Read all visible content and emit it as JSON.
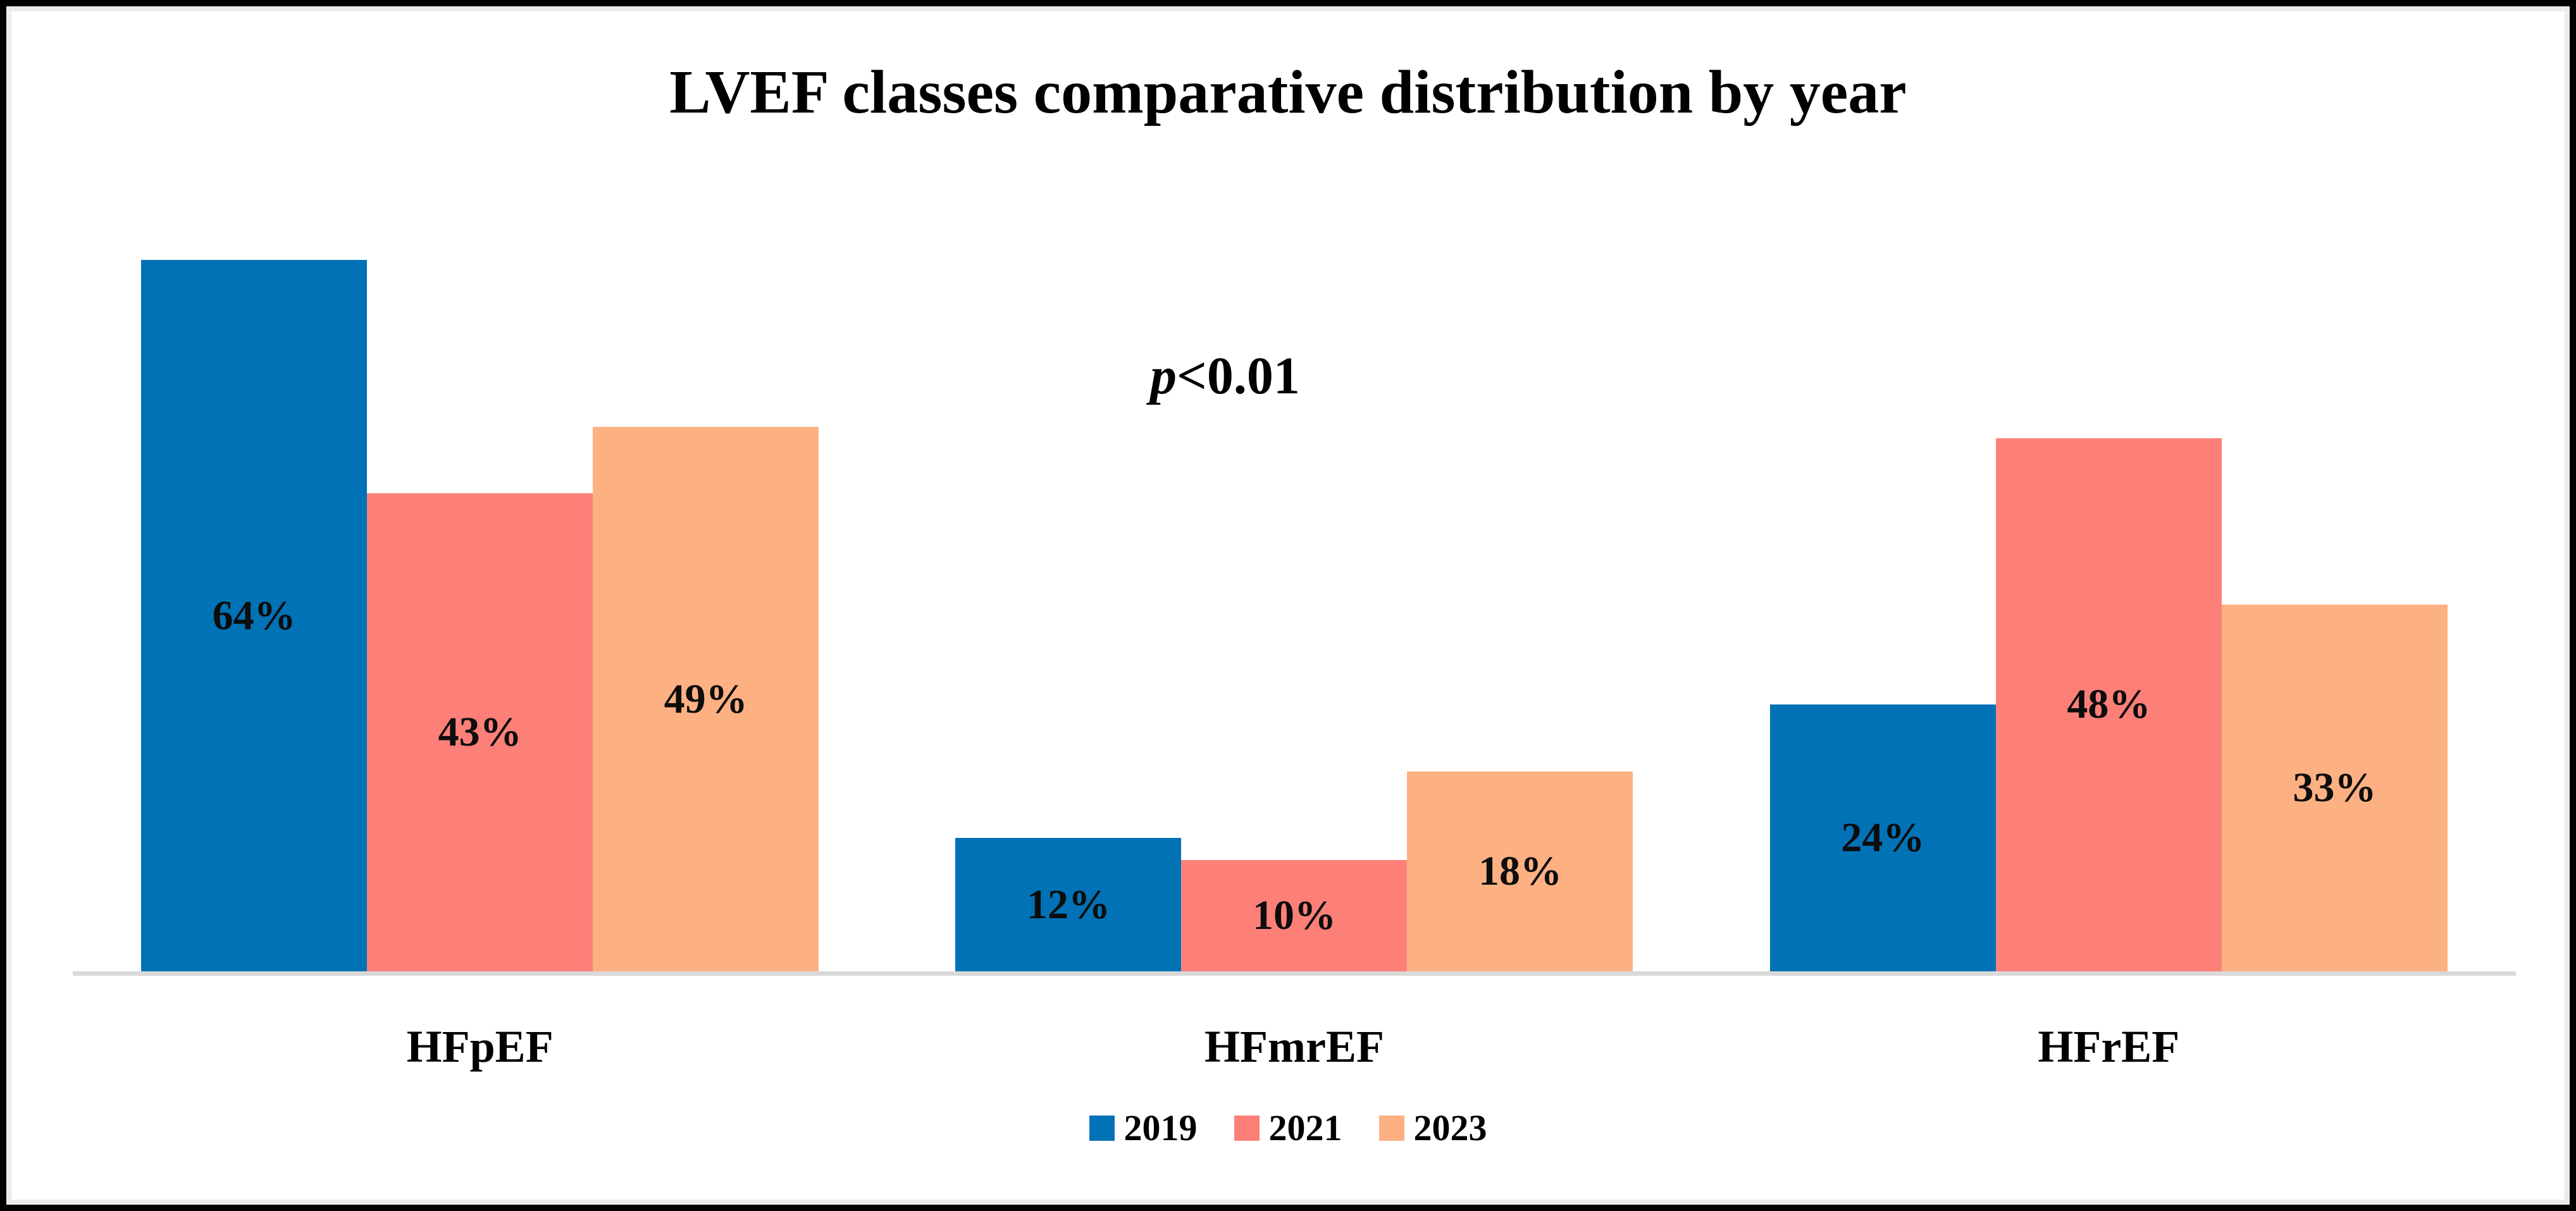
{
  "frame": {
    "background": "#FFFFFF",
    "border_color": "#000000",
    "inner_border_color": "#EBEBEB"
  },
  "chart_data": {
    "type": "bar",
    "title": "LVEF classes comparative distribution by year",
    "annotation": {
      "prefix_italic": "p",
      "text": "<0.01"
    },
    "categories": [
      "HFpEF",
      "HFmrEF",
      "HFrEF"
    ],
    "series": [
      {
        "name": "2019",
        "color": "#0272B6",
        "values": [
          64,
          12,
          24
        ]
      },
      {
        "name": "2021",
        "color": "#FD8078",
        "values": [
          43,
          10,
          48
        ]
      },
      {
        "name": "2023",
        "color": "#FDB182",
        "values": [
          49,
          18,
          33
        ]
      }
    ],
    "value_suffix": "%",
    "xlabel": "",
    "ylabel": "",
    "ylim": [
      0,
      70
    ],
    "grid": false,
    "y_axis_visible": false,
    "axis_line_color": "#D9D9D9",
    "legend_position": "bottom",
    "value_labels": "inside-center",
    "label_color": "#0D0D0D"
  }
}
